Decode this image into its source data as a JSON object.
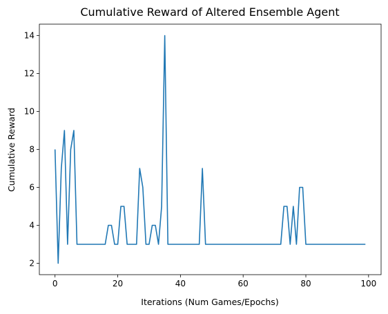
{
  "chart_data": {
    "type": "line",
    "title": "Cumulative Reward of Altered Ensemble Agent",
    "xlabel": "Iterations (Num Games/Epochs)",
    "ylabel": "Cumulative Reward",
    "xlim": [
      -5,
      104
    ],
    "ylim": [
      1.4,
      14.6
    ],
    "xticks": [
      0,
      20,
      40,
      60,
      80,
      100
    ],
    "yticks": [
      2,
      4,
      6,
      8,
      10,
      12,
      14
    ],
    "grid": false,
    "legend": "none",
    "line_color": "#1f77b4",
    "series": [
      {
        "x": [
          0,
          1,
          2,
          3,
          4,
          5,
          6,
          7,
          8,
          9,
          10,
          11,
          12,
          13,
          14,
          15,
          16,
          17,
          18,
          19,
          20,
          21,
          22,
          23,
          24,
          25,
          26,
          27,
          28,
          29,
          30,
          31,
          32,
          33,
          34,
          35,
          36,
          37,
          38,
          39,
          40,
          41,
          42,
          43,
          44,
          45,
          46,
          47,
          48,
          49,
          50,
          51,
          52,
          53,
          54,
          55,
          56,
          57,
          58,
          59,
          60,
          61,
          62,
          63,
          64,
          65,
          66,
          67,
          68,
          69,
          70,
          71,
          72,
          73,
          74,
          75,
          76,
          77,
          78,
          79,
          80,
          81,
          82,
          83,
          84,
          85,
          86,
          87,
          88,
          89,
          90,
          91,
          92,
          93,
          94,
          95,
          96,
          97,
          98,
          99
        ],
        "y": [
          8,
          2,
          7,
          9,
          3,
          8,
          9,
          3,
          3,
          3,
          3,
          3,
          3,
          3,
          3,
          3,
          3,
          4,
          4,
          3,
          3,
          5,
          5,
          3,
          3,
          3,
          3,
          7,
          6,
          3,
          3,
          4,
          4,
          3,
          5,
          14,
          3,
          3,
          3,
          3,
          3,
          3,
          3,
          3,
          3,
          3,
          3,
          7,
          3,
          3,
          3,
          3,
          3,
          3,
          3,
          3,
          3,
          3,
          3,
          3,
          3,
          3,
          3,
          3,
          3,
          3,
          3,
          3,
          3,
          3,
          3,
          3,
          3,
          5,
          5,
          3,
          5,
          3,
          6,
          6,
          3,
          3,
          3,
          3,
          3,
          3,
          3,
          3,
          3,
          3,
          3,
          3,
          3,
          3,
          3,
          3,
          3,
          3,
          3,
          3
        ]
      }
    ]
  }
}
